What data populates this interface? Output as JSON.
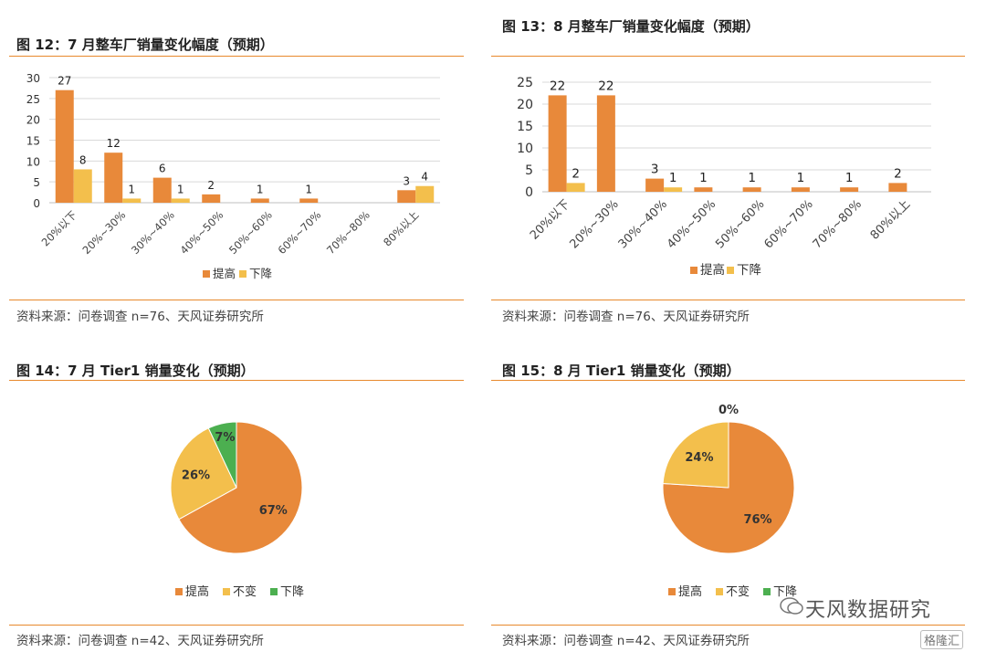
{
  "figures": [
    {
      "title": "图 12：7 月整车厂销量变化幅度（预期）",
      "source": "资料来源：问卷调查 n=76、天风证券研究所"
    },
    {
      "title": "图 13：8 月整车厂销量变化幅度（预期）",
      "source": "资料来源：问卷调查 n=76、天风证券研究所"
    },
    {
      "title": "图 14：7 月 Tier1 销量变化（预期）",
      "source": "资料来源：问卷调查 n=42、天风证券研究所"
    },
    {
      "title": "图 15：8 月 Tier1 销量变化（预期）",
      "source": "资料来源：问卷调查 n=42、天风证券研究所"
    }
  ],
  "watermark": {
    "text": "天风数据研究",
    "badge": "格隆汇"
  },
  "colors": {
    "orange": "#e8893a",
    "yellow": "#f3bf4c",
    "green": "#4caf50",
    "grid": "#d9d9d9",
    "rule": "#e8892c"
  },
  "chart_data": [
    {
      "type": "bar",
      "categories": [
        "20%以下",
        "20%~30%",
        "30%~40%",
        "40%~50%",
        "50%~60%",
        "60%~70%",
        "70%~80%",
        "80%以上"
      ],
      "series": [
        {
          "name": "提高",
          "values": [
            27,
            12,
            6,
            2,
            1,
            1,
            null,
            3
          ],
          "labels": [
            "27",
            "12",
            "6",
            "2",
            "1",
            "1",
            "",
            "3"
          ]
        },
        {
          "name": "下降",
          "values": [
            8,
            1,
            1,
            null,
            null,
            null,
            null,
            4
          ],
          "labels": [
            "8",
            "1",
            "1",
            "",
            "",
            "",
            "",
            "4"
          ]
        }
      ],
      "yticks": [
        "0",
        "5",
        "10",
        "15",
        "20",
        "25",
        "30"
      ],
      "ylim": [
        0,
        30
      ],
      "grid": true,
      "legend": "bottom"
    },
    {
      "type": "bar",
      "categories": [
        "20%以下",
        "20%~30%",
        "30%~40%",
        "40%~50%",
        "50%~60%",
        "60%~70%",
        "70%~80%",
        "80%以上"
      ],
      "series": [
        {
          "name": "提高",
          "values": [
            22,
            22,
            3,
            1,
            1,
            1,
            1,
            2
          ],
          "labels": [
            "22",
            "22",
            "3",
            "1",
            "1",
            "1",
            "1",
            "2"
          ]
        },
        {
          "name": "下降",
          "values": [
            2,
            null,
            1,
            null,
            null,
            null,
            null,
            null
          ],
          "labels": [
            "2",
            "",
            "1",
            "",
            "",
            "",
            "",
            ""
          ]
        }
      ],
      "yticks": [
        "0",
        "5",
        "10",
        "15",
        "20",
        "25"
      ],
      "ylim": [
        0,
        25
      ],
      "grid": true,
      "legend": "bottom"
    },
    {
      "type": "pie",
      "slices": [
        {
          "name": "提高",
          "value": 67,
          "label": "67%"
        },
        {
          "name": "不变",
          "value": 26,
          "label": "26%"
        },
        {
          "name": "下降",
          "value": 7,
          "label": "7%"
        }
      ],
      "legend": "bottom"
    },
    {
      "type": "pie",
      "slices": [
        {
          "name": "提高",
          "value": 76,
          "label": "76%"
        },
        {
          "name": "不变",
          "value": 24,
          "label": "24%"
        },
        {
          "name": "下降",
          "value": 0,
          "label": "0%"
        }
      ],
      "legend": "bottom"
    }
  ]
}
